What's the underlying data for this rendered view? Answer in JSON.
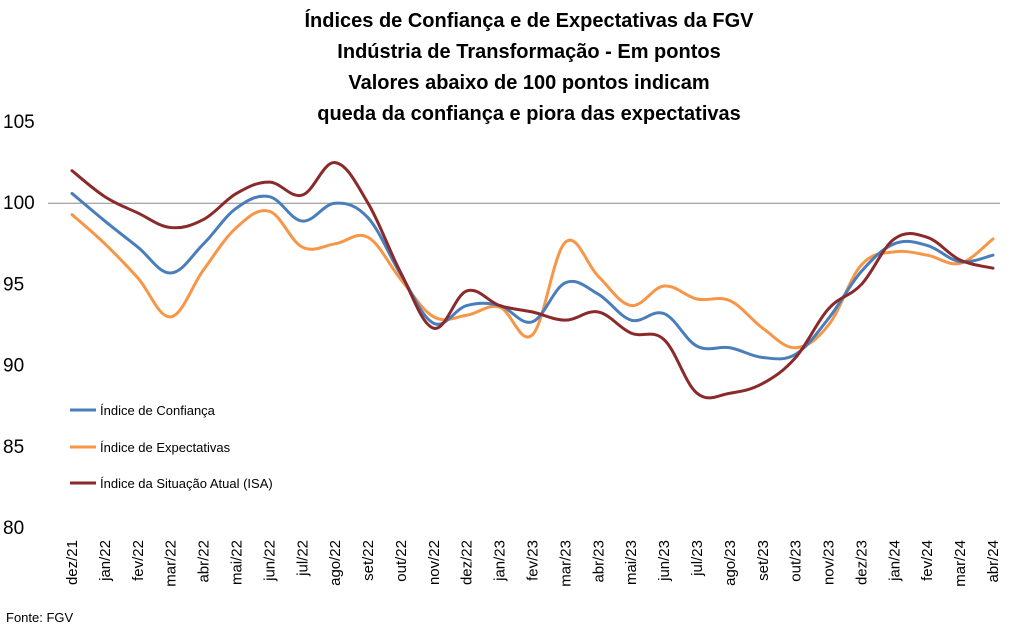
{
  "chart_data": {
    "type": "line",
    "title": [
      "Índices de Confiança e de Expectativas da FGV",
      "Indústria de Transformação - Em pontos",
      "Valores abaixo de 100 pontos indicam",
      "queda da confiança e piora das expectativas"
    ],
    "categories": [
      "dez/21",
      "jan/22",
      "fev/22",
      "mar/22",
      "abr/22",
      "mai/22",
      "jun/22",
      "jul/22",
      "ago/22",
      "set/22",
      "out/22",
      "nov/22",
      "dez/22",
      "jan/23",
      "fev/23",
      "mar/23",
      "abr/23",
      "mai/23",
      "jun/23",
      "jul/23",
      "ago/23",
      "set/23",
      "out/23",
      "nov/23",
      "dez/23",
      "jan/24",
      "fev/24",
      "mar/24",
      "abr/24"
    ],
    "yticks": [
      "105",
      "100",
      "95",
      "90",
      "85",
      "80"
    ],
    "ylim": [
      80,
      105
    ],
    "reference_line": 100,
    "legend_position": "left",
    "series": [
      {
        "name": "Índice de Confiança",
        "color": "#4a7ebb",
        "values": [
          100.6,
          98.9,
          97.3,
          95.7,
          97.5,
          99.7,
          100.4,
          98.9,
          100.0,
          99.1,
          95.6,
          92.6,
          93.7,
          93.7,
          92.7,
          95.1,
          94.4,
          92.8,
          93.2,
          91.2,
          91.1,
          90.5,
          90.7,
          92.9,
          95.8,
          97.5,
          97.4,
          96.4,
          96.8
        ]
      },
      {
        "name": "Índice de Expectativas",
        "color": "#f79646",
        "values": [
          99.3,
          97.5,
          95.4,
          93.0,
          95.9,
          98.5,
          99.5,
          97.3,
          97.5,
          97.9,
          95.3,
          93.0,
          93.1,
          93.6,
          91.9,
          97.6,
          95.5,
          93.7,
          94.9,
          94.1,
          94.0,
          92.3,
          91.1,
          92.5,
          96.2,
          97.0,
          96.8,
          96.3,
          97.8
        ]
      },
      {
        "name": "Índice da Situação Atual (ISA)",
        "color": "#8b2a2b",
        "values": [
          102.0,
          100.4,
          99.4,
          98.5,
          99.0,
          100.6,
          101.3,
          100.5,
          102.5,
          100.0,
          95.7,
          92.3,
          94.6,
          93.7,
          93.3,
          92.8,
          93.3,
          92.0,
          91.6,
          88.3,
          88.3,
          88.9,
          90.5,
          93.5,
          95.0,
          97.8,
          97.9,
          96.5,
          96.0
        ]
      }
    ]
  },
  "source": "Fonte: FGV"
}
